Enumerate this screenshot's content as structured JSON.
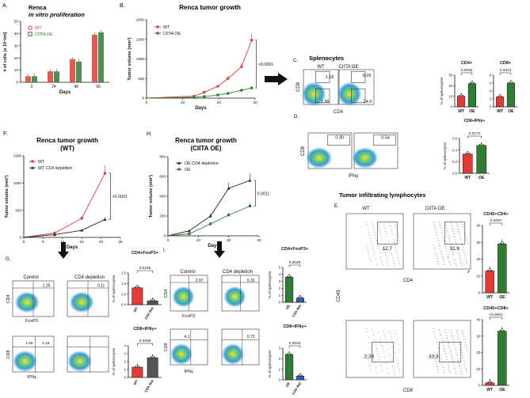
{
  "colors": {
    "wt": "#e53935",
    "oe": "#2e7d32",
    "black": "#222222",
    "blue": "#2b5fb4",
    "grey": "#777777",
    "flowBlue": "#3c5db3"
  },
  "panels": {
    "A": {
      "letter": "A.",
      "title1": "Renca",
      "title2": "in vitro proliferation"
    },
    "B": {
      "letter": "B.",
      "title": "Renca tumor growth",
      "pval": "<0.0001"
    },
    "C": {
      "letter": "C.",
      "title": "Splenocytes"
    },
    "D": {
      "letter": "D."
    },
    "E": {
      "letter": "E.",
      "title": "Tumor infiltrating lymphocytes"
    },
    "F": {
      "letter": "F.",
      "title1": "Renca  tumor growth",
      "title2": "(WT)",
      "pval": "<0.0001"
    },
    "G": {
      "letter": "G."
    },
    "H": {
      "letter": "H.",
      "title1": "Renca  tumor growth",
      "title2": "(CIITA OE)",
      "pval": "0.0011"
    },
    "I": {
      "letter": "I."
    }
  },
  "chart_data": [
    {
      "id": "A",
      "type": "bar",
      "title": "Renca in vitro proliferation",
      "xlabel": "Days",
      "ylabel": "# of cells  (x 10⁴/ml)",
      "categories": [
        "0",
        "24",
        "48",
        "96"
      ],
      "ylim": [
        0,
        50
      ],
      "yticks": [
        "0",
        "10",
        "20",
        "30",
        "40",
        "50"
      ],
      "series": [
        {
          "name": "WT",
          "values": [
            5,
            9,
            19,
            39
          ]
        },
        {
          "name": "CIITA OE",
          "values": [
            5,
            9,
            17,
            41
          ]
        }
      ]
    },
    {
      "id": "B",
      "type": "line",
      "title": "Renca tumor growth",
      "xlabel": "Days",
      "ylabel": "Tumor volume (mm³)",
      "xlim": [
        0,
        32
      ],
      "ylim": [
        0,
        2000
      ],
      "xticks": [
        "0",
        "10",
        "20",
        "30"
      ],
      "yticks": [
        "0",
        "500",
        "1000",
        "1500",
        "2000"
      ],
      "series": [
        {
          "name": "WT",
          "x": [
            0,
            14,
            17,
            21,
            24,
            28,
            31
          ],
          "y": [
            0,
            50,
            150,
            300,
            500,
            800,
            1480
          ]
        },
        {
          "name": "CIITA OE",
          "x": [
            0,
            14,
            17,
            21,
            24,
            28,
            31
          ],
          "y": [
            0,
            20,
            40,
            80,
            120,
            200,
            260
          ]
        }
      ]
    },
    {
      "id": "C-CD4",
      "type": "bar",
      "title": "CD4+",
      "ylabel": "% of splenocytes",
      "categories": [
        "WT",
        "OE"
      ],
      "ylim": [
        0,
        30
      ],
      "yticks": [
        "0",
        "10",
        "20",
        "30"
      ],
      "values": [
        10,
        22
      ],
      "pval": "0.0002"
    },
    {
      "id": "C-CD8",
      "type": "bar",
      "title": "CD8+",
      "categories": [
        "WT",
        "OE"
      ],
      "ylim": [
        0,
        8
      ],
      "yticks": [
        "0",
        "2",
        "4",
        "6",
        "8"
      ],
      "values": [
        2.5,
        6
      ],
      "pval": "0.0013"
    },
    {
      "id": "D",
      "type": "bar",
      "title": "CD8+IFNγ+",
      "ylabel": "% of splenocytes",
      "categories": [
        "WT",
        "OE"
      ],
      "ylim": [
        0,
        0.6
      ],
      "yticks": [
        "0.0",
        "0.2",
        "0.4",
        "0.6"
      ],
      "values": [
        0.33,
        0.48
      ],
      "pval": "0.0172"
    },
    {
      "id": "F",
      "type": "line",
      "title": "Renca  tumor growth (WT)",
      "xlabel": "Days",
      "ylabel": "Tumor volume (mm³)",
      "xlim": [
        0,
        25
      ],
      "ylim": [
        0,
        1500
      ],
      "xticks": [
        "0",
        "5",
        "10",
        "15",
        "20",
        "25"
      ],
      "yticks": [
        "0",
        "500",
        "1000",
        "1500"
      ],
      "series": [
        {
          "name": "WT",
          "x": [
            0,
            8,
            15,
            21
          ],
          "y": [
            0,
            80,
            350,
            1180
          ]
        },
        {
          "name": "WT CD4 depletion",
          "x": [
            0,
            8,
            15,
            21
          ],
          "y": [
            0,
            50,
            130,
            330
          ]
        }
      ]
    },
    {
      "id": "H",
      "type": "line",
      "title": "Renca  tumor growth (CIITA OE)",
      "xlabel": "Days",
      "ylabel": "Tumor volume (mm³)",
      "xlim": [
        0,
        30
      ],
      "ylim": [
        0,
        800
      ],
      "xticks": [
        "0",
        "10",
        "20",
        "30"
      ],
      "yticks": [
        "0",
        "200",
        "400",
        "600",
        "800"
      ],
      "series": [
        {
          "name": "OE CD4 depletion",
          "x": [
            0,
            7,
            14,
            20,
            27
          ],
          "y": [
            0,
            50,
            200,
            480,
            560
          ]
        },
        {
          "name": "OE",
          "x": [
            0,
            7,
            14,
            20,
            27
          ],
          "y": [
            0,
            20,
            120,
            210,
            300
          ]
        }
      ]
    },
    {
      "id": "G-FoxP3",
      "type": "bar",
      "title": "CD4+FoxP3+",
      "ylabel": "% of splenocytes",
      "categories": [
        "WT",
        "CD4 dep"
      ],
      "ylim": [
        0,
        1.5
      ],
      "yticks": [
        "0.0",
        "0.5",
        "1.0",
        "1.5"
      ],
      "values": [
        0.8,
        0.18
      ],
      "pval": "0.0248"
    },
    {
      "id": "G-IFNg",
      "type": "bar",
      "title": "CD8+IFNγ+",
      "ylabel": "% of splenocytes",
      "categories": [
        "WT",
        "CD4 dep"
      ],
      "ylim": [
        0,
        4
      ],
      "yticks": [
        "0",
        "1",
        "2",
        "3",
        "4"
      ],
      "values": [
        1.3,
        2.5
      ],
      "pval": "0.0096"
    },
    {
      "id": "I-FoxP3",
      "type": "bar",
      "title": "CD4+FoxP3+",
      "ylabel": "% of splenocytes",
      "categories": [
        "OE",
        "CD4 dep"
      ],
      "ylim": [
        0,
        5
      ],
      "yticks": [
        "0",
        "1",
        "2",
        "3",
        "4",
        "5"
      ],
      "values": [
        3.6,
        0.6
      ],
      "pval": "0.0029"
    },
    {
      "id": "I-IFNg",
      "type": "bar",
      "title": "CD8+IFNγ+",
      "ylabel": "% of splenocytes",
      "categories": [
        "OE",
        "CD4 dep"
      ],
      "ylim": [
        0,
        3
      ],
      "yticks": [
        "0",
        "1",
        "2",
        "3"
      ],
      "values": [
        2.4,
        0.35
      ],
      "pval": "0.0033"
    },
    {
      "id": "E-CD4",
      "type": "bar",
      "title": "CD45+CD4+",
      "ylabel": "% of CD45+ cells",
      "categories": [
        "WT",
        "OE"
      ],
      "ylim": [
        0,
        40
      ],
      "yticks": [
        "0",
        "10",
        "20",
        "30",
        "40"
      ],
      "values": [
        13,
        29
      ],
      "pval": "0.0007"
    },
    {
      "id": "E-CD8",
      "type": "bar",
      "title": "CD45+CD8+",
      "ylabel": "% of CD45+ cells",
      "categories": [
        "WT",
        "OE"
      ],
      "ylim": [
        0,
        40
      ],
      "yticks": [
        "0",
        "10",
        "20",
        "30",
        "40"
      ],
      "values": [
        1.5,
        33
      ],
      "pval": "<0.0001"
    }
  ],
  "flow": {
    "C": {
      "wt": "WT",
      "oe": "CIITA OE",
      "wt_top": "1.18",
      "wt_bottom": "7.56",
      "oe_top": "6.05",
      "oe_bottom": "24.0",
      "xaxis": "CD4",
      "yaxis": "CD8"
    },
    "D": {
      "wt": "0.30",
      "oe": "0.54",
      "xaxis": "IFNγ",
      "yaxis": "CD8"
    },
    "G": {
      "control": "Control",
      "depletion": "CD4 depletion",
      "foxp3_ctrl": "1.35",
      "foxp3_dep": "0.11",
      "ifng_ctrl": "1.06",
      "ifng_dep": "3.18",
      "x1": "FoxP3",
      "y1": "CD4",
      "x2": "IFNγ",
      "y2": "CD8"
    },
    "I": {
      "control": "Control",
      "depletion": "CD4 depletion",
      "foxp3_ctrl": "2.97",
      "foxp3_dep": "0.33",
      "ifng_ctrl": "4.1",
      "ifng_dep": "0.73",
      "x1": "FoxP3",
      "y1": "CD4",
      "x2": "IFNγ",
      "y2": "CD8"
    },
    "E": {
      "wt": "WT",
      "oe": "CIITA OE",
      "cd4_wt": "12.7",
      "cd4_oe": "31.6",
      "cd8_wt": "2.39",
      "cd8_oe": "33.3",
      "x1": "CD4",
      "x2": "CD8",
      "yaxis": "CD45"
    }
  }
}
